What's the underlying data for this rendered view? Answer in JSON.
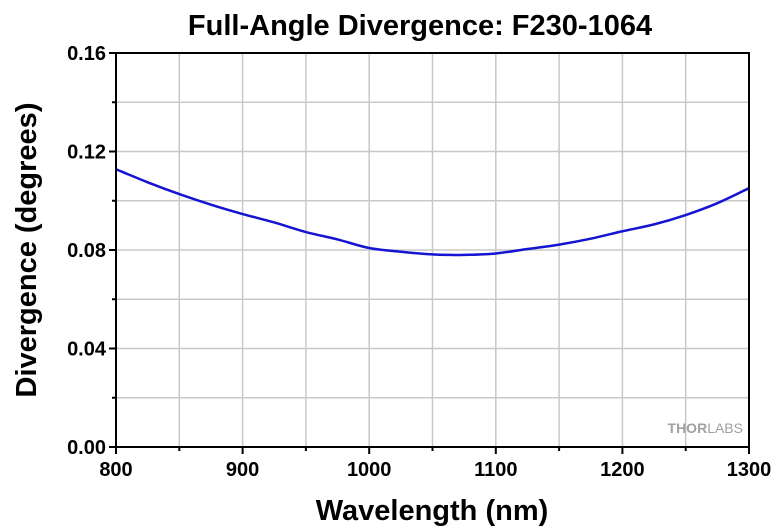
{
  "colors": {
    "series": "#1414d2",
    "grid": "#c8c8c8",
    "watermark": "#a0a0a0"
  },
  "watermark": {
    "bold_part": "THOR",
    "light_part": "LABS"
  },
  "chart_data": {
    "type": "line",
    "title": "Full-Angle Divergence: F230-1064",
    "xlabel": "Wavelength (nm)",
    "ylabel": "Divergence (degrees)",
    "xlim": [
      800,
      1300
    ],
    "ylim": [
      0,
      0.16
    ],
    "xticks": [
      800,
      900,
      1000,
      1100,
      1200,
      1300
    ],
    "xtick_labels": [
      "800",
      "900",
      "1000",
      "1100",
      "1200",
      "1300"
    ],
    "yticks": [
      0,
      0.04,
      0.08,
      0.12,
      0.16
    ],
    "ytick_labels": [
      "0.00",
      "0.04",
      "0.08",
      "0.12",
      "0.16"
    ],
    "grid": true,
    "series": [
      {
        "name": "F230-1064",
        "x": [
          800,
          825,
          850,
          875,
          900,
          925,
          950,
          975,
          1000,
          1025,
          1050,
          1064,
          1075,
          1100,
          1125,
          1150,
          1175,
          1200,
          1225,
          1250,
          1275,
          1300
        ],
        "values": [
          0.1128,
          0.1075,
          0.1027,
          0.0984,
          0.0946,
          0.0912,
          0.0873,
          0.0843,
          0.0808,
          0.0793,
          0.0782,
          0.078,
          0.078,
          0.0786,
          0.0804,
          0.0822,
          0.0846,
          0.0876,
          0.0904,
          0.0942,
          0.099,
          0.1051
        ]
      }
    ]
  }
}
